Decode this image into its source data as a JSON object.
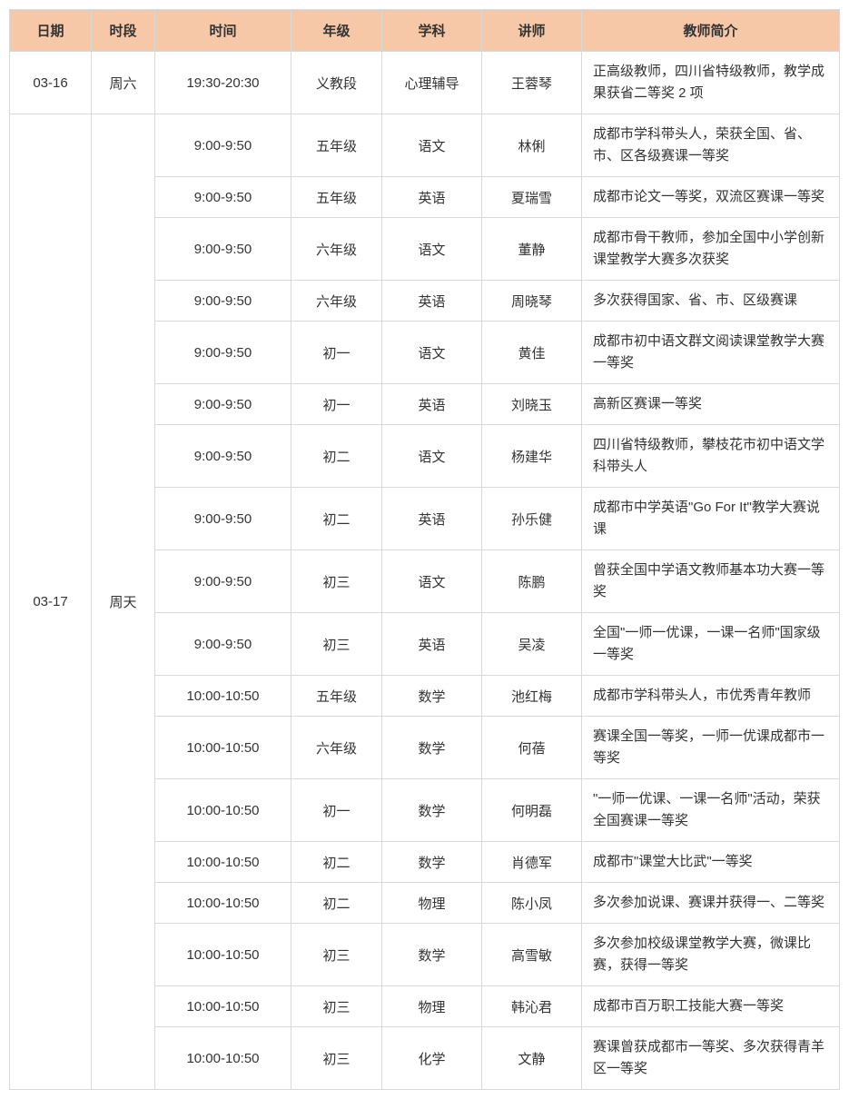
{
  "headers": {
    "date": "日期",
    "period": "时段",
    "time": "时间",
    "grade": "年级",
    "subject": "学科",
    "teacher": "讲师",
    "intro": "教师简介"
  },
  "groups": [
    {
      "date": "03-16",
      "period": "周六",
      "rows": [
        {
          "time": "19:30-20:30",
          "grade": "义教段",
          "subject": "心理辅导",
          "teacher": "王蓉琴",
          "intro": "正高级教师，四川省特级教师，教学成果获省二等奖 2 项"
        }
      ]
    },
    {
      "date": "03-17",
      "period": "周天",
      "rows": [
        {
          "time": "9:00-9:50",
          "grade": "五年级",
          "subject": "语文",
          "teacher": "林俐",
          "intro": "成都市学科带头人，荣获全国、省、市、区各级赛课一等奖"
        },
        {
          "time": "9:00-9:50",
          "grade": "五年级",
          "subject": "英语",
          "teacher": "夏瑞雪",
          "intro": "成都市论文一等奖，双流区赛课一等奖"
        },
        {
          "time": "9:00-9:50",
          "grade": "六年级",
          "subject": "语文",
          "teacher": "董静",
          "intro": "成都市骨干教师，参加全国中小学创新课堂教学大赛多次获奖"
        },
        {
          "time": "9:00-9:50",
          "grade": "六年级",
          "subject": "英语",
          "teacher": "周晓琴",
          "intro": "多次获得国家、省、市、区级赛课"
        },
        {
          "time": "9:00-9:50",
          "grade": "初一",
          "subject": "语文",
          "teacher": "黄佳",
          "intro": "成都市初中语文群文阅读课堂教学大赛一等奖"
        },
        {
          "time": "9:00-9:50",
          "grade": "初一",
          "subject": "英语",
          "teacher": "刘晓玉",
          "intro": "高新区赛课一等奖"
        },
        {
          "time": "9:00-9:50",
          "grade": "初二",
          "subject": "语文",
          "teacher": "杨建华",
          "intro": "四川省特级教师，攀枝花市初中语文学科带头人"
        },
        {
          "time": "9:00-9:50",
          "grade": "初二",
          "subject": "英语",
          "teacher": "孙乐健",
          "intro": "成都市中学英语\"Go For It\"教学大赛说课"
        },
        {
          "time": "9:00-9:50",
          "grade": "初三",
          "subject": "语文",
          "teacher": "陈鹏",
          "intro": "曾获全国中学语文教师基本功大赛一等奖"
        },
        {
          "time": "9:00-9:50",
          "grade": "初三",
          "subject": "英语",
          "teacher": "吴凌",
          "intro": "全国\"一师一优课，一课一名师\"国家级一等奖"
        },
        {
          "time": "10:00-10:50",
          "grade": "五年级",
          "subject": "数学",
          "teacher": "池红梅",
          "intro": "成都市学科带头人，市优秀青年教师"
        },
        {
          "time": "10:00-10:50",
          "grade": "六年级",
          "subject": "数学",
          "teacher": "何蓓",
          "intro": "赛课全国一等奖，一师一优课成都市一等奖"
        },
        {
          "time": "10:00-10:50",
          "grade": "初一",
          "subject": "数学",
          "teacher": "何明磊",
          "intro": "\"一师一优课、一课一名师\"活动，荣获全国赛课一等奖"
        },
        {
          "time": "10:00-10:50",
          "grade": "初二",
          "subject": "数学",
          "teacher": "肖德军",
          "intro": "成都市\"课堂大比武\"一等奖"
        },
        {
          "time": "10:00-10:50",
          "grade": "初二",
          "subject": "物理",
          "teacher": "陈小凤",
          "intro": "多次参加说课、赛课并获得一、二等奖"
        },
        {
          "time": "10:00-10:50",
          "grade": "初三",
          "subject": "数学",
          "teacher": "高雪敏",
          "intro": "多次参加校级课堂教学大赛，微课比赛，获得一等奖"
        },
        {
          "time": "10:00-10:50",
          "grade": "初三",
          "subject": "物理",
          "teacher": "韩沁君",
          "intro": "成都市百万职工技能大赛一等奖"
        },
        {
          "time": "10:00-10:50",
          "grade": "初三",
          "subject": "化学",
          "teacher": "文静",
          "intro": "赛课曾获成都市一等奖、多次获得青羊区一等奖"
        }
      ]
    }
  ]
}
